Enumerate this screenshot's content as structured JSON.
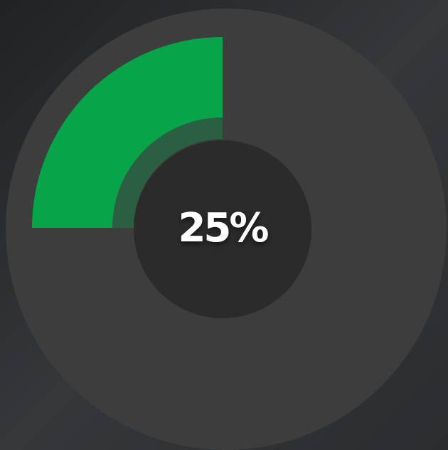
{
  "chart_data": {
    "type": "progress",
    "values": [
      25
    ],
    "value_labels": [
      "25%"
    ],
    "color": "#08a44a"
  }
}
